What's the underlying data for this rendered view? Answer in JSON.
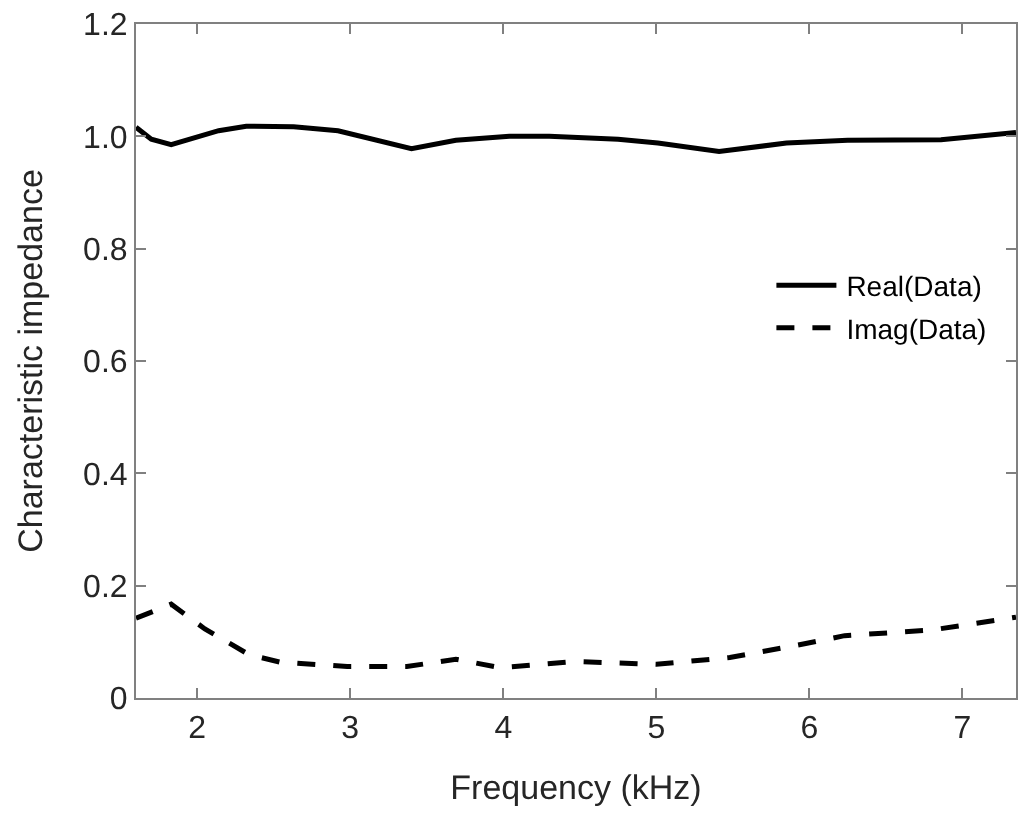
{
  "chart_data": {
    "type": "line",
    "xlabel": "Frequency (kHz)",
    "ylabel": "Characteristic impedance",
    "xlim": [
      1.6,
      7.35
    ],
    "xticks": [
      2,
      3,
      4,
      5,
      6,
      7
    ],
    "ylim": [
      0,
      1.2
    ],
    "yticks": [
      0,
      0.2,
      0.4,
      0.6,
      0.8,
      {
        "value": 1,
        "label": "1.0"
      },
      1.2
    ],
    "legend": "right",
    "marker": "none",
    "series": [
      {
        "name": "Real(Data)",
        "color": "#000000",
        "line_style": "solid",
        "x": [
          1.6,
          1.7,
          1.83,
          2.14,
          2.32,
          2.63,
          2.92,
          3.4,
          3.69,
          4.04,
          4.3,
          4.75,
          5.01,
          5.41,
          5.85,
          6.25,
          6.86,
          7.35
        ],
        "values": [
          1.016,
          0.995,
          0.985,
          1.01,
          1.018,
          1.017,
          1.01,
          0.978,
          0.993,
          1.0,
          1.0,
          0.995,
          0.988,
          0.973,
          0.988,
          0.993,
          0.994,
          1.007
        ]
      },
      {
        "name": "Imag(Data)",
        "color": "#000000",
        "line_style": "dashed",
        "x": [
          1.6,
          1.83,
          2.05,
          2.34,
          2.54,
          2.98,
          3.37,
          3.69,
          3.98,
          4.46,
          5.0,
          5.48,
          5.96,
          6.23,
          6.8,
          7.35
        ],
        "values": [
          0.142,
          0.167,
          0.123,
          0.077,
          0.064,
          0.056,
          0.056,
          0.069,
          0.054,
          0.065,
          0.06,
          0.072,
          0.096,
          0.111,
          0.121,
          0.144
        ]
      }
    ]
  }
}
